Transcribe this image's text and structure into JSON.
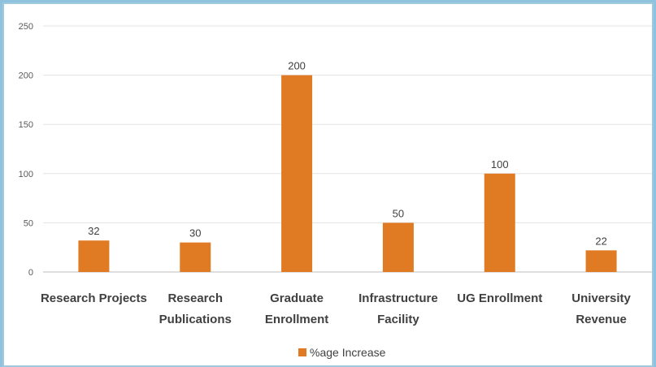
{
  "chart_data": {
    "type": "bar",
    "categories": [
      "Research Projects",
      "Research Publications",
      "Graduate Enrollment",
      "Infrastructure Facility",
      "UG Enrollment",
      "University Revenue"
    ],
    "category_lines": [
      [
        "Research Projects"
      ],
      [
        "Research",
        "Publications"
      ],
      [
        "Graduate",
        "Enrollment"
      ],
      [
        "Infrastructure",
        "Facility"
      ],
      [
        "UG Enrollment"
      ],
      [
        "University",
        "Revenue"
      ]
    ],
    "series": [
      {
        "name": "%age Increase",
        "values": [
          32,
          30,
          200,
          50,
          100,
          22
        ],
        "color": "#e07b24"
      }
    ],
    "yticks": [
      0,
      50,
      100,
      150,
      200,
      250
    ],
    "ylim": [
      0,
      250
    ],
    "grid": true,
    "legend_position": "bottom",
    "title": "",
    "xlabel": "",
    "ylabel": ""
  }
}
